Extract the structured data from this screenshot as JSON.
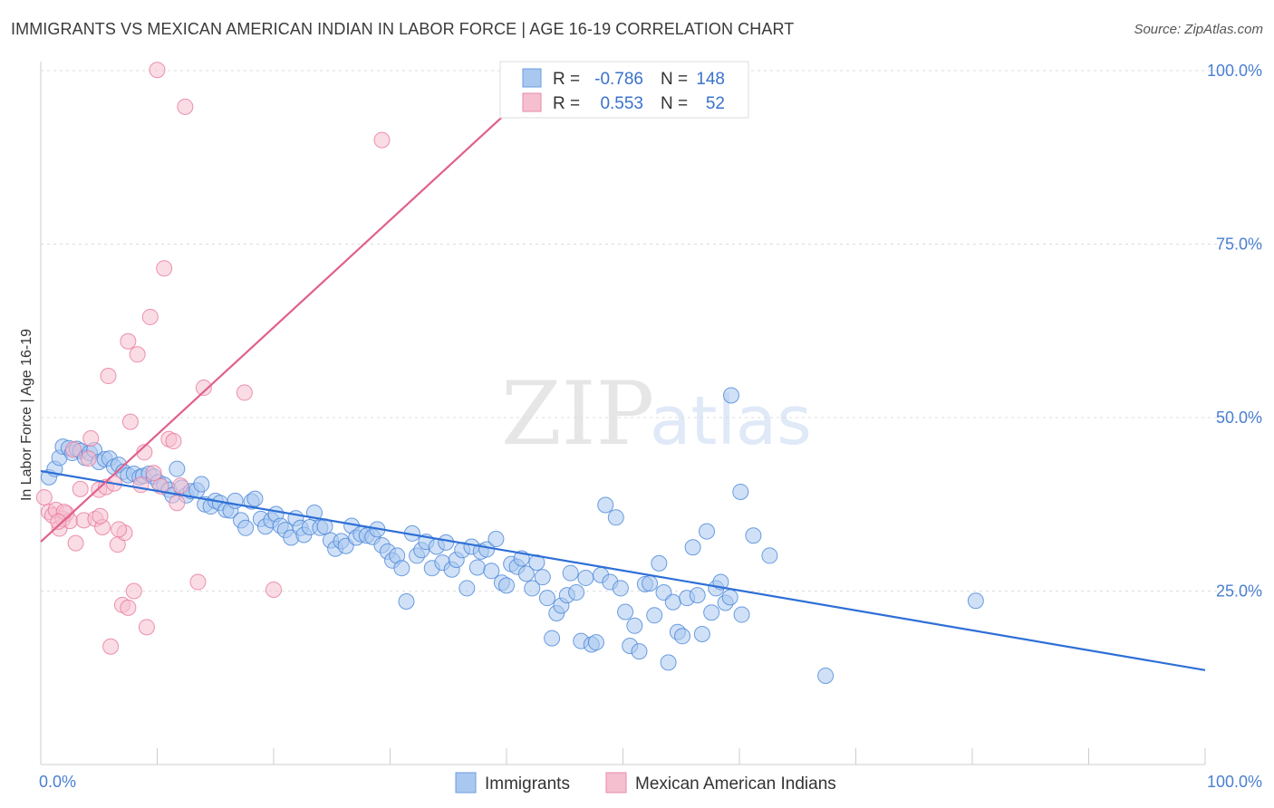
{
  "header": {
    "title": "IMMIGRANTS VS MEXICAN AMERICAN INDIAN IN LABOR FORCE | AGE 16-19 CORRELATION CHART",
    "source": "Source: ZipAtlas.com"
  },
  "watermark": {
    "zip": "ZIP",
    "atlas": "atlas"
  },
  "legend_box": {
    "rows": [
      {
        "r_label": "R =",
        "r_value": "-0.786",
        "n_label": "N =",
        "n_value": "148"
      },
      {
        "r_label": "R =",
        "r_value": "0.553",
        "n_label": "N =",
        "n_value": "52"
      }
    ]
  },
  "chart_data": {
    "type": "scatter",
    "title": "IMMIGRANTS VS MEXICAN AMERICAN INDIAN IN LABOR FORCE | AGE 16-19 CORRELATION CHART",
    "xlabel": "",
    "ylabel": "In Labor Force | Age 16-19",
    "xlim": [
      0,
      100
    ],
    "ylim": [
      0,
      100
    ],
    "x_tick_labels": [
      "0.0%",
      "100.0%"
    ],
    "y_ticks": [
      25,
      50,
      75,
      100
    ],
    "y_tick_labels": [
      "25.0%",
      "50.0%",
      "75.0%",
      "100.0%"
    ],
    "grid": true,
    "legend_position": "bottom",
    "colors": {
      "immigrants": "#4a86d8",
      "immigrants_fill": "#a9c8f0",
      "mexican": "#e8789c",
      "mexican_fill": "#f5bfd0"
    },
    "series": [
      {
        "name": "Immigrants",
        "r": -0.786,
        "n": 148,
        "trend": {
          "x": [
            0,
            100
          ],
          "y": [
            42.3,
            13.6
          ]
        },
        "points": [
          [
            0.7,
            41.4
          ],
          [
            1.2,
            42.6
          ],
          [
            1.6,
            44.2
          ],
          [
            1.9,
            45.8
          ],
          [
            2.4,
            45.6
          ],
          [
            2.7,
            44.9
          ],
          [
            3.1,
            45.5
          ],
          [
            3.4,
            45.2
          ],
          [
            3.8,
            44.2
          ],
          [
            4.2,
            44.9
          ],
          [
            4.6,
            45.3
          ],
          [
            5.0,
            43.6
          ],
          [
            5.5,
            44.0
          ],
          [
            5.9,
            44.1
          ],
          [
            6.3,
            42.9
          ],
          [
            6.7,
            43.2
          ],
          [
            7.1,
            42.2
          ],
          [
            7.5,
            41.7
          ],
          [
            8.0,
            41.9
          ],
          [
            8.5,
            41.4
          ],
          [
            8.8,
            41.6
          ],
          [
            9.3,
            41.9
          ],
          [
            9.7,
            41.5
          ],
          [
            10.1,
            40.7
          ],
          [
            10.6,
            40.3
          ],
          [
            11.0,
            39.6
          ],
          [
            11.3,
            38.8
          ],
          [
            11.7,
            42.6
          ],
          [
            12.1,
            39.9
          ],
          [
            12.5,
            38.8
          ],
          [
            12.9,
            39.4
          ],
          [
            13.4,
            39.5
          ],
          [
            13.8,
            40.4
          ],
          [
            14.1,
            37.5
          ],
          [
            14.6,
            37.2
          ],
          [
            15.0,
            38.0
          ],
          [
            15.4,
            37.7
          ],
          [
            15.9,
            36.7
          ],
          [
            16.3,
            36.6
          ],
          [
            16.7,
            38.0
          ],
          [
            17.2,
            35.2
          ],
          [
            17.6,
            34.1
          ],
          [
            18.1,
            37.9
          ],
          [
            18.4,
            38.3
          ],
          [
            18.9,
            35.4
          ],
          [
            19.3,
            34.3
          ],
          [
            19.8,
            35.2
          ],
          [
            20.2,
            36.1
          ],
          [
            20.6,
            34.4
          ],
          [
            21.0,
            33.8
          ],
          [
            21.5,
            32.7
          ],
          [
            21.9,
            35.5
          ],
          [
            22.3,
            34.1
          ],
          [
            22.6,
            33.1
          ],
          [
            23.1,
            34.2
          ],
          [
            23.5,
            36.3
          ],
          [
            24.0,
            34.1
          ],
          [
            24.4,
            34.3
          ],
          [
            24.9,
            32.3
          ],
          [
            25.3,
            31.1
          ],
          [
            25.8,
            32.2
          ],
          [
            26.2,
            31.5
          ],
          [
            26.7,
            34.4
          ],
          [
            27.1,
            32.7
          ],
          [
            27.5,
            33.2
          ],
          [
            28.0,
            33.0
          ],
          [
            28.5,
            32.8
          ],
          [
            28.9,
            33.9
          ],
          [
            29.3,
            31.6
          ],
          [
            29.8,
            30.7
          ],
          [
            30.2,
            29.4
          ],
          [
            30.6,
            30.1
          ],
          [
            31.0,
            28.3
          ],
          [
            31.4,
            23.5
          ],
          [
            31.9,
            33.3
          ],
          [
            32.3,
            30.1
          ],
          [
            32.7,
            30.9
          ],
          [
            33.1,
            32.1
          ],
          [
            33.6,
            28.3
          ],
          [
            34.0,
            31.4
          ],
          [
            34.5,
            29.1
          ],
          [
            34.8,
            32.0
          ],
          [
            35.3,
            28.1
          ],
          [
            35.7,
            29.5
          ],
          [
            36.2,
            30.9
          ],
          [
            36.6,
            25.4
          ],
          [
            37.0,
            31.4
          ],
          [
            37.5,
            28.4
          ],
          [
            37.8,
            30.7
          ],
          [
            38.3,
            31.0
          ],
          [
            38.7,
            27.9
          ],
          [
            39.1,
            32.5
          ],
          [
            39.6,
            26.2
          ],
          [
            40.0,
            25.8
          ],
          [
            40.4,
            28.9
          ],
          [
            40.9,
            28.5
          ],
          [
            41.3,
            29.7
          ],
          [
            41.7,
            27.5
          ],
          [
            42.2,
            25.4
          ],
          [
            42.6,
            29.1
          ],
          [
            43.1,
            27.0
          ],
          [
            43.5,
            24.0
          ],
          [
            43.9,
            18.2
          ],
          [
            44.3,
            21.8
          ],
          [
            44.7,
            22.9
          ],
          [
            45.2,
            24.4
          ],
          [
            45.5,
            27.6
          ],
          [
            46.0,
            24.8
          ],
          [
            46.4,
            17.8
          ],
          [
            46.8,
            26.9
          ],
          [
            47.3,
            17.3
          ],
          [
            47.7,
            17.6
          ],
          [
            48.1,
            27.3
          ],
          [
            48.5,
            37.4
          ],
          [
            48.9,
            26.3
          ],
          [
            49.4,
            35.6
          ],
          [
            49.8,
            25.4
          ],
          [
            50.2,
            22.0
          ],
          [
            50.6,
            17.1
          ],
          [
            51.0,
            20.0
          ],
          [
            51.4,
            16.3
          ],
          [
            51.9,
            26.0
          ],
          [
            52.3,
            26.1
          ],
          [
            52.7,
            21.5
          ],
          [
            53.1,
            29.0
          ],
          [
            53.5,
            24.8
          ],
          [
            53.9,
            14.7
          ],
          [
            54.3,
            23.4
          ],
          [
            54.7,
            19.1
          ],
          [
            55.1,
            18.5
          ],
          [
            55.5,
            24.0
          ],
          [
            56.0,
            31.3
          ],
          [
            56.4,
            24.4
          ],
          [
            56.8,
            18.8
          ],
          [
            57.2,
            33.6
          ],
          [
            57.6,
            21.9
          ],
          [
            58.0,
            25.4
          ],
          [
            58.4,
            26.3
          ],
          [
            58.8,
            23.3
          ],
          [
            59.3,
            53.2
          ],
          [
            60.1,
            39.3
          ],
          [
            61.2,
            33.0
          ],
          [
            80.3,
            23.6
          ],
          [
            62.6,
            30.1
          ],
          [
            67.4,
            12.8
          ],
          [
            59.2,
            24.1
          ],
          [
            60.2,
            21.6
          ]
        ]
      },
      {
        "name": "Mexican American Indians",
        "r": 0.553,
        "n": 52,
        "trend": {
          "x": [
            0,
            39.8
          ],
          "y": [
            32.1,
            93.6
          ]
        },
        "points": [
          [
            0.3,
            38.5
          ],
          [
            0.7,
            36.4
          ],
          [
            1.0,
            35.9
          ],
          [
            1.3,
            36.7
          ],
          [
            1.6,
            34.0
          ],
          [
            1.9,
            35.4
          ],
          [
            2.2,
            36.2
          ],
          [
            2.5,
            35.1
          ],
          [
            2.8,
            45.4
          ],
          [
            3.0,
            31.9
          ],
          [
            3.4,
            39.7
          ],
          [
            3.7,
            35.2
          ],
          [
            4.1,
            44.1
          ],
          [
            4.3,
            47.0
          ],
          [
            4.7,
            35.4
          ],
          [
            5.0,
            39.6
          ],
          [
            5.3,
            34.2
          ],
          [
            5.6,
            40.0
          ],
          [
            5.8,
            56.0
          ],
          [
            6.0,
            17.0
          ],
          [
            6.3,
            40.5
          ],
          [
            6.6,
            31.7
          ],
          [
            7.0,
            23.0
          ],
          [
            7.2,
            33.4
          ],
          [
            7.5,
            61.0
          ],
          [
            7.7,
            49.4
          ],
          [
            8.0,
            25.0
          ],
          [
            8.3,
            59.1
          ],
          [
            8.6,
            40.3
          ],
          [
            8.9,
            45.0
          ],
          [
            9.1,
            19.8
          ],
          [
            9.4,
            64.5
          ],
          [
            9.7,
            42.0
          ],
          [
            10.0,
            100.1
          ],
          [
            10.3,
            40.1
          ],
          [
            10.6,
            71.5
          ],
          [
            11.0,
            46.9
          ],
          [
            11.4,
            46.6
          ],
          [
            11.7,
            37.7
          ],
          [
            12.0,
            40.2
          ],
          [
            12.4,
            94.8
          ],
          [
            13.5,
            26.3
          ],
          [
            14.0,
            54.3
          ],
          [
            17.5,
            53.6
          ],
          [
            20.0,
            25.2
          ],
          [
            29.3,
            90.0
          ],
          [
            44.3,
            100.1
          ],
          [
            7.5,
            22.6
          ],
          [
            6.7,
            33.9
          ],
          [
            5.1,
            35.8
          ],
          [
            2.0,
            36.4
          ],
          [
            1.5,
            35.0
          ]
        ]
      }
    ]
  },
  "bottom_legend": [
    {
      "label": "Immigrants"
    },
    {
      "label": "Mexican American Indians"
    }
  ]
}
